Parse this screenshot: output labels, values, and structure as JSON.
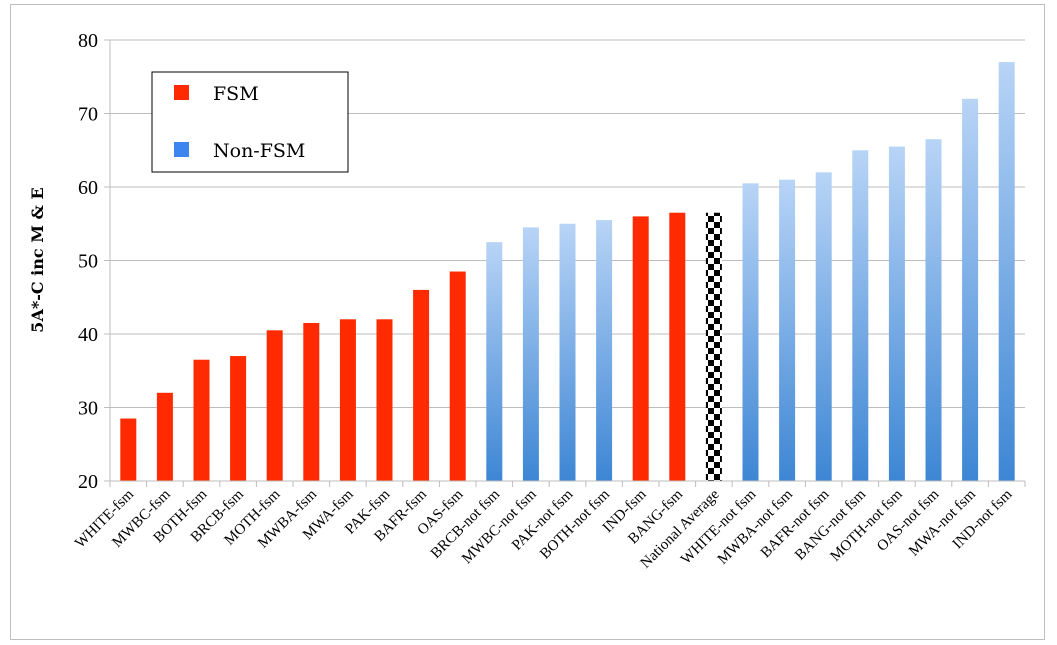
{
  "chart_data": {
    "type": "bar",
    "title": "",
    "xlabel": "",
    "ylabel": "5A*-C inc M & E",
    "ylim": [
      20,
      80
    ],
    "yticks": [
      20,
      30,
      40,
      50,
      60,
      70,
      80
    ],
    "grid": true,
    "legend_position": "top-left",
    "legend": [
      {
        "name": "FSM",
        "color": "#ff2a00"
      },
      {
        "name": "Non-FSM",
        "color": "#3d86f0"
      }
    ],
    "categories": [
      "WHITE-fsm",
      "MWBC-fsm",
      "BOTH-fsm",
      "BRCB-fsm",
      "MOTH-fsm",
      "MWBA-fsm",
      "MWA-fsm",
      "PAK-fsm",
      "BAFR-fsm",
      "OAS-fsm",
      "BRCB-not fsm",
      "MWBC-not fsm",
      "PAK-not fsm",
      "BOTH-not fsm",
      "IND-fsm",
      "BANG-fsm",
      "National Average",
      "WHITE-not fsm",
      "MWBA-not fsm",
      "BAFR-not fsm",
      "BANG-not fsm",
      "MOTH-not fsm",
      "OAS-not fsm",
      "MWA-not fsm",
      "IND-not fsm"
    ],
    "values": [
      28.5,
      32,
      36.5,
      37,
      40.5,
      41.5,
      42,
      42,
      46,
      48.5,
      52.5,
      54.5,
      55,
      55.5,
      56,
      56.5,
      56.5,
      60.5,
      61,
      62,
      65,
      65.5,
      66.5,
      72,
      77
    ],
    "groups": [
      "FSM",
      "FSM",
      "FSM",
      "FSM",
      "FSM",
      "FSM",
      "FSM",
      "FSM",
      "FSM",
      "FSM",
      "Non-FSM",
      "Non-FSM",
      "Non-FSM",
      "Non-FSM",
      "FSM",
      "FSM",
      "National Average",
      "Non-FSM",
      "Non-FSM",
      "Non-FSM",
      "Non-FSM",
      "Non-FSM",
      "Non-FSM",
      "Non-FSM",
      "Non-FSM"
    ],
    "colors": {
      "fsm": "#ff2a00",
      "nonfsm_top": "#b8d4f6",
      "nonfsm_bottom": "#3d86d4",
      "grid": "#bdbdbd",
      "checker": "#000000"
    }
  }
}
